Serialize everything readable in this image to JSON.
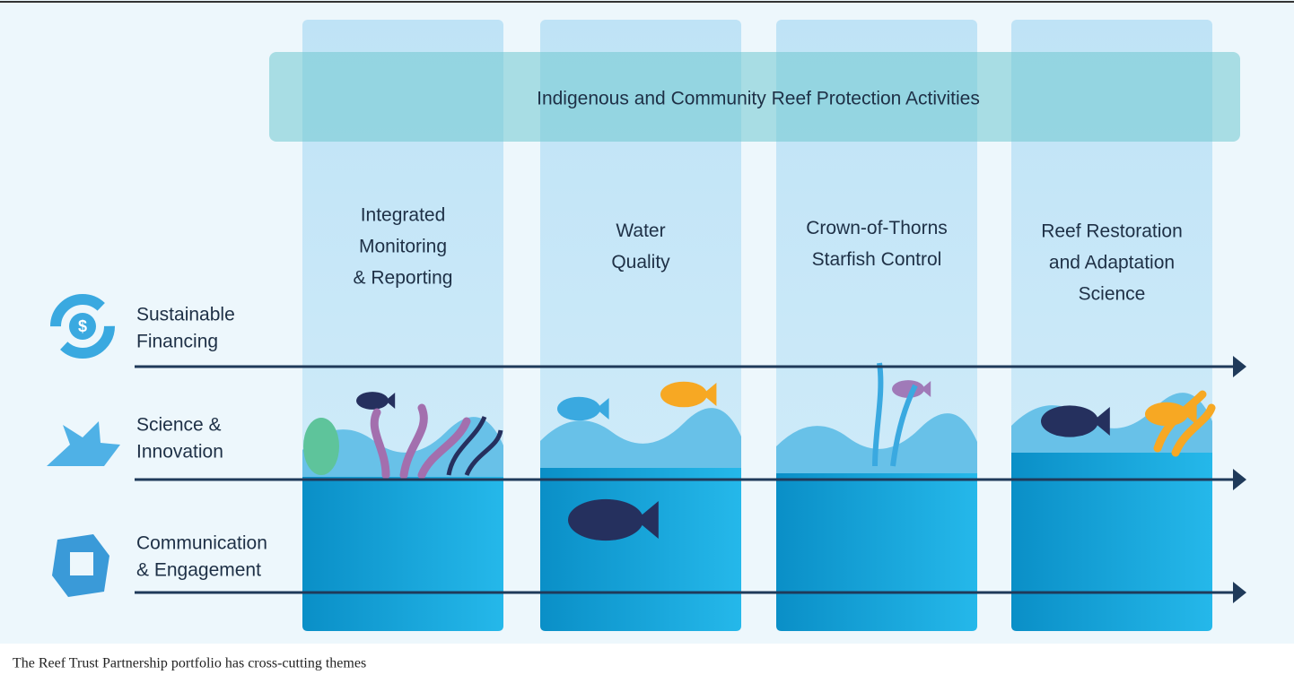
{
  "banner": "Indigenous and Community Reef Protection Activities",
  "columns": [
    {
      "label": [
        "Integrated",
        "Monitoring",
        "& Reporting"
      ]
    },
    {
      "label": [
        "Water",
        "Quality"
      ]
    },
    {
      "label": [
        "Crown-of-Thorns",
        "Starfish Control"
      ]
    },
    {
      "label": [
        "Reef Restoration",
        "and Adaptation",
        "Science"
      ]
    }
  ],
  "themes": [
    {
      "label": [
        "Sustainable",
        "Financing"
      ]
    },
    {
      "label": [
        "Science &",
        "Innovation"
      ]
    },
    {
      "label": [
        "Communication",
        "& Engagement"
      ]
    }
  ],
  "caption": "The Reef Trust Partnership portfolio has cross-cutting themes"
}
